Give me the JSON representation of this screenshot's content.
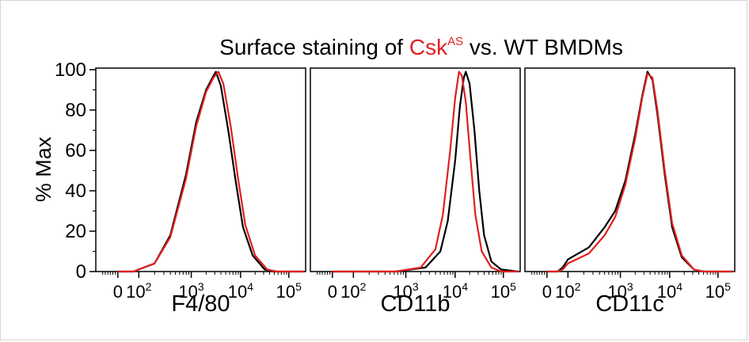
{
  "figure": {
    "title_prefix": "Surface staining of ",
    "title_highlight": "Csk",
    "title_superscript": "AS",
    "title_suffix": " vs. WT BMDMs",
    "highlight_color": "#e02020"
  },
  "chart_data": {
    "type": "line",
    "title": "Surface staining of CskAS vs. WT BMDMs",
    "ylabel": "% Max",
    "ylim": [
      0,
      100
    ],
    "yticks": [
      0,
      20,
      40,
      60,
      80,
      100
    ],
    "x_scale": "biexponential",
    "xticks": [
      "0",
      "10^2",
      "10^3",
      "10^4",
      "10^5"
    ],
    "grid": false,
    "series_colors": {
      "WT": "#000000",
      "CskAS": "#e02020"
    },
    "panels": [
      {
        "xlabel": "F4/80",
        "series": [
          {
            "color": "#000000",
            "points": [
              [
                0,
                0
              ],
              [
                1.5,
                0
              ],
              [
                2.0,
                1
              ],
              [
                2.3,
                4
              ],
              [
                2.6,
                18
              ],
              [
                2.9,
                48
              ],
              [
                3.1,
                74
              ],
              [
                3.3,
                90
              ],
              [
                3.45,
                97
              ],
              [
                3.5,
                99
              ],
              [
                3.6,
                92
              ],
              [
                3.75,
                70
              ],
              [
                3.9,
                45
              ],
              [
                4.05,
                22
              ],
              [
                4.25,
                8
              ],
              [
                4.5,
                1
              ],
              [
                4.7,
                0
              ],
              [
                5.3,
                0
              ]
            ]
          },
          {
            "color": "#e02020",
            "points": [
              [
                0,
                0
              ],
              [
                1.5,
                0
              ],
              [
                2.0,
                1
              ],
              [
                2.3,
                4
              ],
              [
                2.6,
                17
              ],
              [
                2.9,
                46
              ],
              [
                3.1,
                72
              ],
              [
                3.3,
                89
              ],
              [
                3.45,
                96
              ],
              [
                3.55,
                99
              ],
              [
                3.65,
                93
              ],
              [
                3.8,
                72
              ],
              [
                3.95,
                46
              ],
              [
                4.1,
                23
              ],
              [
                4.3,
                8
              ],
              [
                4.55,
                1
              ],
              [
                4.75,
                0
              ],
              [
                5.3,
                0
              ]
            ]
          }
        ]
      },
      {
        "xlabel": "CD11b",
        "series": [
          {
            "color": "#000000",
            "points": [
              [
                0,
                0
              ],
              [
                2.8,
                0
              ],
              [
                3.4,
                2
              ],
              [
                3.7,
                10
              ],
              [
                3.85,
                25
              ],
              [
                4.0,
                55
              ],
              [
                4.1,
                82
              ],
              [
                4.18,
                96
              ],
              [
                4.22,
                99
              ],
              [
                4.3,
                93
              ],
              [
                4.4,
                70
              ],
              [
                4.5,
                40
              ],
              [
                4.6,
                18
              ],
              [
                4.75,
                5
              ],
              [
                4.95,
                1
              ],
              [
                5.3,
                0
              ]
            ]
          },
          {
            "color": "#e02020",
            "points": [
              [
                0,
                0
              ],
              [
                2.8,
                0
              ],
              [
                3.3,
                2
              ],
              [
                3.6,
                11
              ],
              [
                3.75,
                28
              ],
              [
                3.9,
                60
              ],
              [
                4.0,
                86
              ],
              [
                4.08,
                99
              ],
              [
                4.14,
                97
              ],
              [
                4.22,
                84
              ],
              [
                4.32,
                55
              ],
              [
                4.42,
                28
              ],
              [
                4.55,
                10
              ],
              [
                4.75,
                2
              ],
              [
                4.95,
                0
              ],
              [
                5.3,
                0
              ]
            ]
          }
        ]
      },
      {
        "xlabel": "CD11c",
        "series": [
          {
            "color": "#000000",
            "points": [
              [
                0,
                0
              ],
              [
                1.0,
                0
              ],
              [
                1.5,
                2
              ],
              [
                2.0,
                6
              ],
              [
                2.4,
                12
              ],
              [
                2.7,
                22
              ],
              [
                2.9,
                30
              ],
              [
                3.1,
                45
              ],
              [
                3.3,
                68
              ],
              [
                3.45,
                88
              ],
              [
                3.55,
                99
              ],
              [
                3.65,
                95
              ],
              [
                3.75,
                78
              ],
              [
                3.9,
                48
              ],
              [
                4.05,
                22
              ],
              [
                4.25,
                7
              ],
              [
                4.5,
                1
              ],
              [
                4.7,
                0
              ],
              [
                5.3,
                0
              ]
            ]
          },
          {
            "color": "#e02020",
            "points": [
              [
                0,
                0
              ],
              [
                1.0,
                0
              ],
              [
                1.5,
                1
              ],
              [
                2.0,
                4
              ],
              [
                2.4,
                9
              ],
              [
                2.7,
                18
              ],
              [
                2.9,
                27
              ],
              [
                3.1,
                43
              ],
              [
                3.3,
                66
              ],
              [
                3.45,
                87
              ],
              [
                3.55,
                98
              ],
              [
                3.65,
                96
              ],
              [
                3.75,
                80
              ],
              [
                3.9,
                50
              ],
              [
                4.05,
                24
              ],
              [
                4.25,
                8
              ],
              [
                4.5,
                1
              ],
              [
                4.7,
                0
              ],
              [
                5.3,
                0
              ]
            ]
          }
        ]
      }
    ]
  }
}
